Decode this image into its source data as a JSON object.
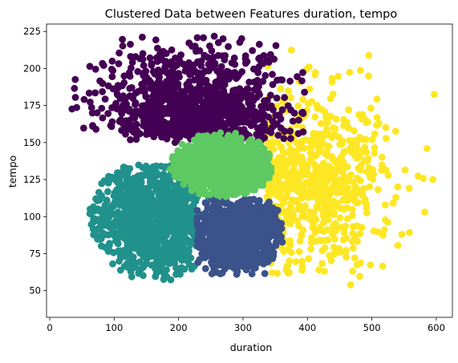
{
  "chart_data": {
    "type": "scatter",
    "title": "Clustered Data between Features duration, tempo",
    "xlabel": "duration",
    "ylabel": "tempo",
    "xlim": [
      -5,
      625
    ],
    "ylim": [
      32,
      230
    ],
    "xticks": [
      0,
      100,
      200,
      300,
      400,
      500,
      600
    ],
    "yticks": [
      50,
      75,
      100,
      125,
      150,
      175,
      200,
      225
    ],
    "grid": false,
    "legend": "none",
    "clusters": [
      {
        "color": "#440154",
        "x_range": [
          30,
          420
        ],
        "y_range": [
          138,
          222
        ],
        "center": [
          225,
          165
        ],
        "count": 1100
      },
      {
        "color": "#3b528b",
        "x_range": [
          225,
          365
        ],
        "y_range": [
          60,
          115
        ],
        "center": [
          290,
          88
        ],
        "count": 900
      },
      {
        "color": "#21918c",
        "x_range": [
          25,
          260
        ],
        "y_range": [
          40,
          135
        ],
        "center": [
          165,
          100
        ],
        "count": 1100
      },
      {
        "color": "#5ec962",
        "x_range": [
          165,
          345
        ],
        "y_range": [
          113,
          158
        ],
        "center": [
          265,
          135
        ],
        "count": 1000
      },
      {
        "color": "#fde725",
        "x_range": [
          275,
          605
        ],
        "y_range": [
          45,
          215
        ],
        "center": [
          410,
          125
        ],
        "count": 700
      }
    ]
  }
}
